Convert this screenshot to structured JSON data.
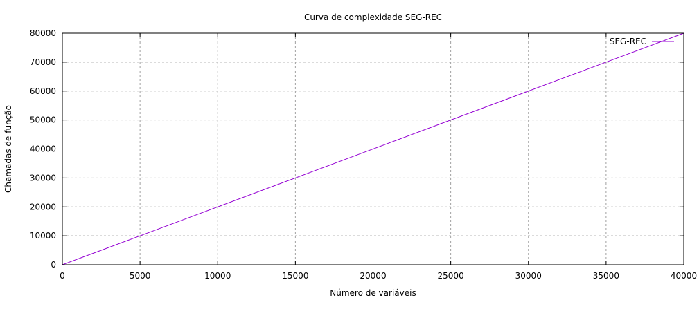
{
  "chart_data": {
    "type": "line",
    "title": "Curva de complexidade SEG-REC",
    "xlabel": "Número de variáveis",
    "ylabel": "Chamadas de função",
    "xlim": [
      0,
      40000
    ],
    "ylim": [
      0,
      80000
    ],
    "x_ticks": [
      0,
      5000,
      10000,
      15000,
      20000,
      25000,
      30000,
      35000,
      40000
    ],
    "y_ticks": [
      0,
      10000,
      20000,
      30000,
      40000,
      50000,
      60000,
      70000,
      80000
    ],
    "grid": true,
    "legend_position": "top-right",
    "series": [
      {
        "name": "SEG-REC",
        "color": "#9400d3",
        "x": [
          0,
          40000
        ],
        "y": [
          0,
          80000
        ]
      }
    ]
  }
}
